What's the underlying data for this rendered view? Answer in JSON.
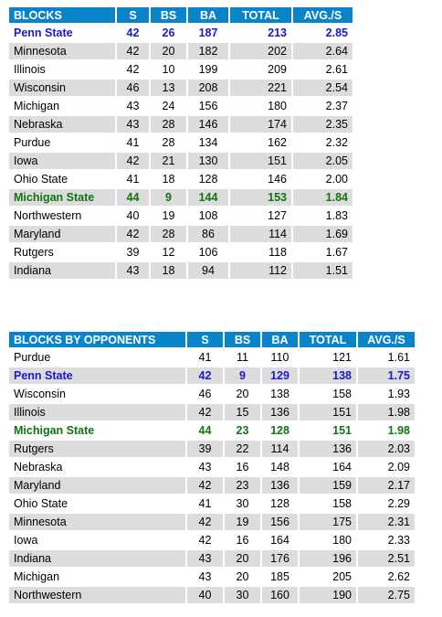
{
  "blocks": {
    "headers": [
      "BLOCKS",
      "S",
      "BS",
      "BA",
      "TOTAL",
      "AVG./S"
    ],
    "rows": [
      {
        "team": "Penn State",
        "s": "42",
        "bs": "26",
        "ba": "187",
        "total": "213",
        "avg": "2.85",
        "highlight": "blue"
      },
      {
        "team": "Minnesota",
        "s": "42",
        "bs": "20",
        "ba": "182",
        "total": "202",
        "avg": "2.64",
        "highlight": ""
      },
      {
        "team": "Illinois",
        "s": "42",
        "bs": "10",
        "ba": "199",
        "total": "209",
        "avg": "2.61",
        "highlight": ""
      },
      {
        "team": "Wisconsin",
        "s": "46",
        "bs": "13",
        "ba": "208",
        "total": "221",
        "avg": "2.54",
        "highlight": ""
      },
      {
        "team": "Michigan",
        "s": "43",
        "bs": "24",
        "ba": "156",
        "total": "180",
        "avg": "2.37",
        "highlight": ""
      },
      {
        "team": "Nebraska",
        "s": "43",
        "bs": "28",
        "ba": "146",
        "total": "174",
        "avg": "2.35",
        "highlight": ""
      },
      {
        "team": "Purdue",
        "s": "41",
        "bs": "28",
        "ba": "134",
        "total": "162",
        "avg": "2.32",
        "highlight": ""
      },
      {
        "team": "Iowa",
        "s": "42",
        "bs": "21",
        "ba": "130",
        "total": "151",
        "avg": "2.05",
        "highlight": ""
      },
      {
        "team": "Ohio State",
        "s": "41",
        "bs": "18",
        "ba": "128",
        "total": "146",
        "avg": "2.00",
        "highlight": ""
      },
      {
        "team": "Michigan State",
        "s": "44",
        "bs": "9",
        "ba": "144",
        "total": "153",
        "avg": "1.84",
        "highlight": "green"
      },
      {
        "team": "Northwestern",
        "s": "40",
        "bs": "19",
        "ba": "108",
        "total": "127",
        "avg": "1.83",
        "highlight": ""
      },
      {
        "team": "Maryland",
        "s": "42",
        "bs": "28",
        "ba": "86",
        "total": "114",
        "avg": "1.69",
        "highlight": ""
      },
      {
        "team": "Rutgers",
        "s": "39",
        "bs": "12",
        "ba": "106",
        "total": "118",
        "avg": "1.67",
        "highlight": ""
      },
      {
        "team": "Indiana",
        "s": "43",
        "bs": "18",
        "ba": "94",
        "total": "112",
        "avg": "1.51",
        "highlight": ""
      }
    ]
  },
  "blocks_by_opponents": {
    "headers": [
      "BLOCKS BY OPPONENTS",
      "S",
      "BS",
      "BA",
      "TOTAL",
      "AVG./S"
    ],
    "rows": [
      {
        "team": "Purdue",
        "s": "41",
        "bs": "11",
        "ba": "110",
        "total": "121",
        "avg": "1.61",
        "highlight": ""
      },
      {
        "team": "Penn State",
        "s": "42",
        "bs": "9",
        "ba": "129",
        "total": "138",
        "avg": "1.75",
        "highlight": "blue"
      },
      {
        "team": "Wisconsin",
        "s": "46",
        "bs": "20",
        "ba": "138",
        "total": "158",
        "avg": "1.93",
        "highlight": ""
      },
      {
        "team": "Illinois",
        "s": "42",
        "bs": "15",
        "ba": "136",
        "total": "151",
        "avg": "1.98",
        "highlight": ""
      },
      {
        "team": "Michigan State",
        "s": "44",
        "bs": "23",
        "ba": "128",
        "total": "151",
        "avg": "1.98",
        "highlight": "green"
      },
      {
        "team": "Rutgers",
        "s": "39",
        "bs": "22",
        "ba": "114",
        "total": "136",
        "avg": "2.03",
        "highlight": ""
      },
      {
        "team": "Nebraska",
        "s": "43",
        "bs": "16",
        "ba": "148",
        "total": "164",
        "avg": "2.09",
        "highlight": ""
      },
      {
        "team": "Maryland",
        "s": "42",
        "bs": "23",
        "ba": "136",
        "total": "159",
        "avg": "2.17",
        "highlight": ""
      },
      {
        "team": "Ohio State",
        "s": "41",
        "bs": "30",
        "ba": "128",
        "total": "158",
        "avg": "2.29",
        "highlight": ""
      },
      {
        "team": "Minnesota",
        "s": "42",
        "bs": "19",
        "ba": "156",
        "total": "175",
        "avg": "2.31",
        "highlight": ""
      },
      {
        "team": "Iowa",
        "s": "42",
        "bs": "16",
        "ba": "164",
        "total": "180",
        "avg": "2.33",
        "highlight": ""
      },
      {
        "team": "Indiana",
        "s": "43",
        "bs": "20",
        "ba": "176",
        "total": "196",
        "avg": "2.51",
        "highlight": ""
      },
      {
        "team": "Michigan",
        "s": "43",
        "bs": "20",
        "ba": "185",
        "total": "205",
        "avg": "2.62",
        "highlight": ""
      },
      {
        "team": "Northwestern",
        "s": "40",
        "bs": "30",
        "ba": "160",
        "total": "190",
        "avg": "2.75",
        "highlight": ""
      }
    ]
  },
  "colors": {
    "header_bg": "#0a84c8",
    "row_alt_bg": "#dcdcdc",
    "highlight_blue": "#1a1ac8",
    "highlight_green": "#137313"
  }
}
